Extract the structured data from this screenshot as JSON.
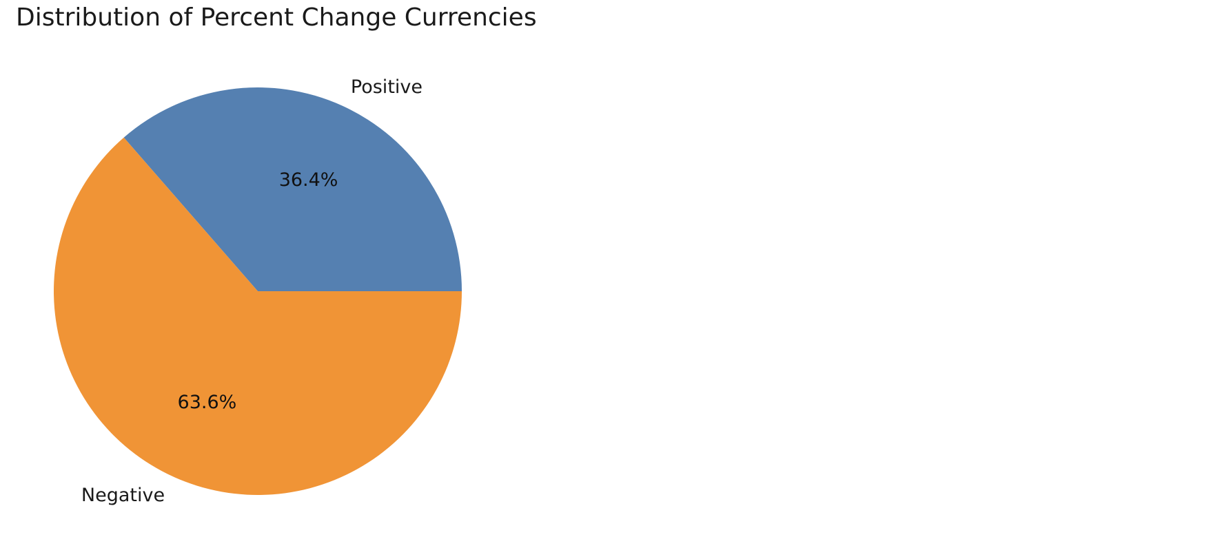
{
  "chart_data": {
    "type": "pie",
    "title": "Distribution of Percent Change Currencies",
    "labels": [
      "Positive",
      "Negative"
    ],
    "values": [
      36.4,
      63.6
    ],
    "value_labels": [
      "36.4%",
      "63.6%"
    ],
    "colors": [
      "#5580b1",
      "#f09436"
    ],
    "start_angle_deg": 0,
    "direction": "counterclockwise",
    "legend": "none"
  }
}
